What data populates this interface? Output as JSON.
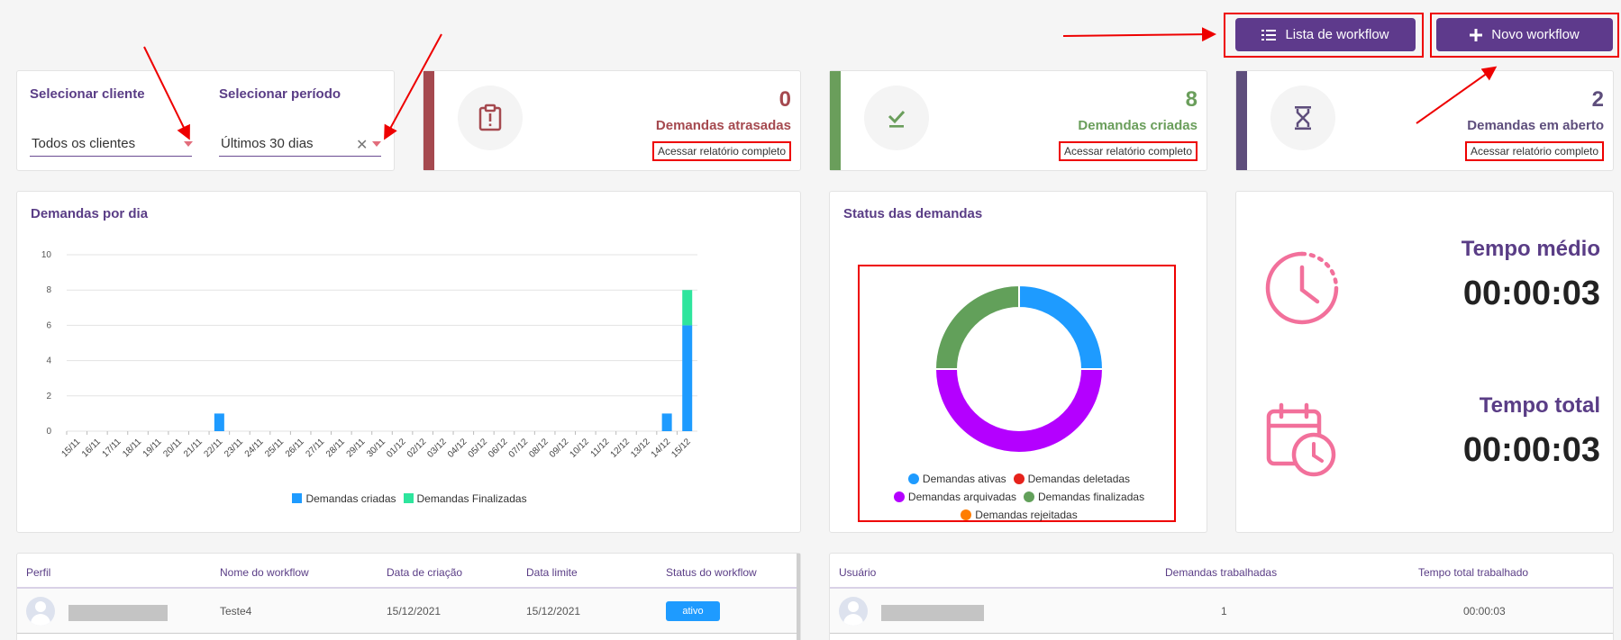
{
  "header": {
    "workflow_list_label": "Lista de workflow",
    "new_workflow_label": "Novo workflow"
  },
  "filters": {
    "client_title": "Selecionar cliente",
    "client_value": "Todos os clientes",
    "period_title": "Selecionar período",
    "period_value": "Últimos 30 dias"
  },
  "stats": [
    {
      "value": "0",
      "label": "Demandas atrasadas",
      "link": "Acessar relatório completo",
      "color": "#a5494f"
    },
    {
      "value": "8",
      "label": "Demandas criadas",
      "link": "Acessar relatório completo",
      "color": "#6a9e5b"
    },
    {
      "value": "2",
      "label": "Demandas em aberto",
      "link": "Acessar relatório completo",
      "color": "#5e4e7c"
    }
  ],
  "bar_chart_title": "Demandas por dia",
  "donut_title": "Status das demandas",
  "chart_data": [
    {
      "type": "bar",
      "title": "Demandas por dia",
      "categories": [
        "15/11",
        "16/11",
        "17/11",
        "18/11",
        "19/11",
        "20/11",
        "21/11",
        "22/11",
        "23/11",
        "24/11",
        "25/11",
        "26/11",
        "27/11",
        "28/11",
        "29/11",
        "30/11",
        "01/12",
        "02/12",
        "03/12",
        "04/12",
        "05/12",
        "06/12",
        "07/12",
        "08/12",
        "09/12",
        "10/12",
        "11/12",
        "12/12",
        "13/12",
        "14/12",
        "15/12"
      ],
      "ylim": [
        0,
        10
      ],
      "yticks": [
        0,
        2,
        4,
        6,
        8,
        10
      ],
      "stacked": true,
      "series": [
        {
          "name": "Demandas criadas",
          "color": "#1e9bff",
          "values": [
            0,
            0,
            0,
            0,
            0,
            0,
            0,
            1,
            0,
            0,
            0,
            0,
            0,
            0,
            0,
            0,
            0,
            0,
            0,
            0,
            0,
            0,
            0,
            0,
            0,
            0,
            0,
            0,
            0,
            1,
            6
          ]
        },
        {
          "name": "Demandas Finalizadas",
          "color": "#2ee59d",
          "values": [
            0,
            0,
            0,
            0,
            0,
            0,
            0,
            0,
            0,
            0,
            0,
            0,
            0,
            0,
            0,
            0,
            0,
            0,
            0,
            0,
            0,
            0,
            0,
            0,
            0,
            0,
            0,
            0,
            0,
            0,
            2
          ]
        }
      ],
      "legend": "bottom"
    },
    {
      "type": "pie",
      "title": "Status das demandas",
      "donut": true,
      "slices": [
        {
          "name": "Demandas ativas",
          "value": 2,
          "color": "#1e9bff"
        },
        {
          "name": "Demandas deletadas",
          "value": 0,
          "color": "#e6221b"
        },
        {
          "name": "Demandas arquivadas",
          "value": 4,
          "color": "#b400ff"
        },
        {
          "name": "Demandas finalizadas",
          "value": 2,
          "color": "#62a05a"
        },
        {
          "name": "Demandas rejeitadas",
          "value": 0,
          "color": "#ff7d00"
        }
      ],
      "legend": "bottom"
    }
  ],
  "times": {
    "avg_title": "Tempo médio",
    "avg_value": "00:00:03",
    "total_title": "Tempo total",
    "total_value": "00:00:03"
  },
  "workflow_table": {
    "headers": [
      "Perfil",
      "Nome do workflow",
      "Data de criação",
      "Data limite",
      "Status do workflow"
    ],
    "rows": [
      {
        "name": "Teste4",
        "created": "15/12/2021",
        "deadline": "15/12/2021",
        "status": "ativo"
      }
    ]
  },
  "user_table": {
    "headers": [
      "Usuário",
      "Demandas trabalhadas",
      "Tempo total trabalhado"
    ],
    "rows": [
      {
        "worked": "1",
        "time": "00:00:03"
      }
    ]
  },
  "icons": {
    "list": "list-icon",
    "plus": "plus-icon",
    "late": "clipboard-alert-icon",
    "created": "check-icon",
    "open": "hourglass-icon",
    "clock": "clock-icon",
    "calendar": "calendar-clock-icon"
  }
}
